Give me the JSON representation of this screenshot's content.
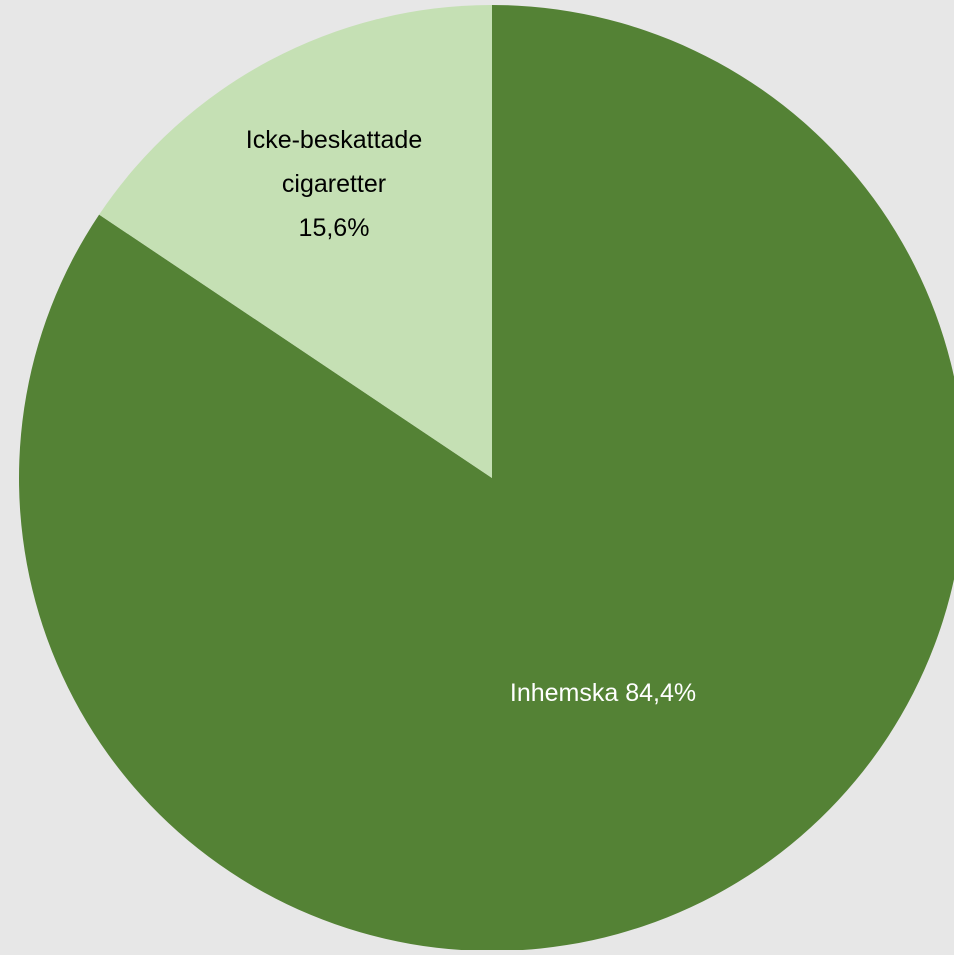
{
  "chart_data": {
    "type": "pie",
    "start_angle_deg": 0,
    "direction": "clockwise",
    "slices": [
      {
        "label": "Inhemska",
        "value": 84.4,
        "value_label": "84,4%",
        "color": "#548235",
        "text_color": "#ffffff"
      },
      {
        "label": "Icke-beskattade cigaretter",
        "label_lines": [
          "Icke-beskattade",
          "cigaretter"
        ],
        "value": 15.6,
        "value_label": "15,6%",
        "color": "#c5e0b4",
        "text_color": "#000000"
      }
    ]
  },
  "colors": {
    "background": "#e7e7e7"
  }
}
